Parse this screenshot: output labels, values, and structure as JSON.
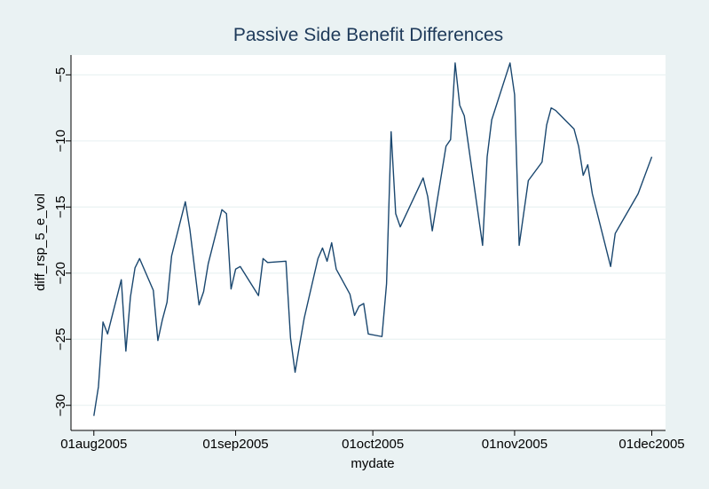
{
  "chart_data": {
    "type": "line",
    "title": "Passive Side Benefit Differences",
    "x_label": "mydate",
    "y_label": "diff_rsp_5_e_vol",
    "color": "#1a476f",
    "grid": true,
    "x": [
      "2005-08-01",
      "2005-08-02",
      "2005-08-03",
      "2005-08-04",
      "2005-08-07",
      "2005-08-08",
      "2005-08-09",
      "2005-08-10",
      "2005-08-11",
      "2005-08-14",
      "2005-08-15",
      "2005-08-16",
      "2005-08-17",
      "2005-08-18",
      "2005-08-21",
      "2005-08-22",
      "2005-08-24",
      "2005-08-25",
      "2005-08-26",
      "2005-08-29",
      "2005-08-30",
      "2005-08-31",
      "2005-09-01",
      "2005-09-02",
      "2005-09-06",
      "2005-09-07",
      "2005-09-08",
      "2005-09-12",
      "2005-09-13",
      "2005-09-14",
      "2005-09-15",
      "2005-09-16",
      "2005-09-19",
      "2005-09-20",
      "2005-09-21",
      "2005-09-22",
      "2005-09-23",
      "2005-09-26",
      "2005-09-27",
      "2005-09-28",
      "2005-09-29",
      "2005-09-30",
      "2005-10-03",
      "2005-10-04",
      "2005-10-05",
      "2005-10-06",
      "2005-10-07",
      "2005-10-12",
      "2005-10-13",
      "2005-10-14",
      "2005-10-17",
      "2005-10-18",
      "2005-10-19",
      "2005-10-20",
      "2005-10-21",
      "2005-10-25",
      "2005-10-26",
      "2005-10-27",
      "2005-10-31",
      "2005-11-01",
      "2005-11-02",
      "2005-11-04",
      "2005-11-07",
      "2005-11-08",
      "2005-11-09",
      "2005-11-10",
      "2005-11-14",
      "2005-11-15",
      "2005-11-16",
      "2005-11-17",
      "2005-11-18",
      "2005-11-22",
      "2005-11-23",
      "2005-11-28",
      "2005-12-01"
    ],
    "values": [
      -30.8,
      -28.6,
      -23.7,
      -24.6,
      -20.5,
      -25.9,
      -21.8,
      -19.6,
      -18.9,
      -21.3,
      -25.1,
      -23.5,
      -22.2,
      -18.7,
      -14.6,
      -16.7,
      -22.4,
      -21.4,
      -19.3,
      -15.2,
      -15.5,
      -21.2,
      -19.7,
      -19.5,
      -21.7,
      -18.9,
      -19.2,
      -19.1,
      -24.9,
      -27.5,
      -25.4,
      -23.4,
      -18.9,
      -18.1,
      -19.1,
      -17.7,
      -19.7,
      -21.6,
      -23.2,
      -22.5,
      -22.3,
      -24.6,
      -24.8,
      -20.8,
      -9.3,
      -15.5,
      -16.5,
      -12.8,
      -14.2,
      -16.8,
      -10.4,
      -9.9,
      -4.1,
      -7.3,
      -8.1,
      -17.9,
      -11.2,
      -8.4,
      -4.1,
      -6.5,
      -17.9,
      -13.0,
      -11.6,
      -8.8,
      -7.5,
      -7.7,
      -9.1,
      -10.4,
      -12.6,
      -11.8,
      -14.0,
      -19.5,
      -17.0,
      -14.0,
      -11.2
    ],
    "xlim": [
      "2005-07-27",
      "2005-12-04"
    ],
    "xticks": [
      {
        "value": "2005-08-01",
        "label": "01aug2005"
      },
      {
        "value": "2005-09-01",
        "label": "01sep2005"
      },
      {
        "value": "2005-10-01",
        "label": "01oct2005"
      },
      {
        "value": "2005-11-01",
        "label": "01nov2005"
      },
      {
        "value": "2005-12-01",
        "label": "01dec2005"
      }
    ],
    "ylim": [
      -31.9,
      -3.5
    ],
    "yticks": [
      {
        "value": -5,
        "label": "−5"
      },
      {
        "value": -10,
        "label": "−10"
      },
      {
        "value": -15,
        "label": "−15"
      },
      {
        "value": -20,
        "label": "−20"
      },
      {
        "value": -25,
        "label": "−25"
      },
      {
        "value": -30,
        "label": "−30"
      }
    ]
  }
}
